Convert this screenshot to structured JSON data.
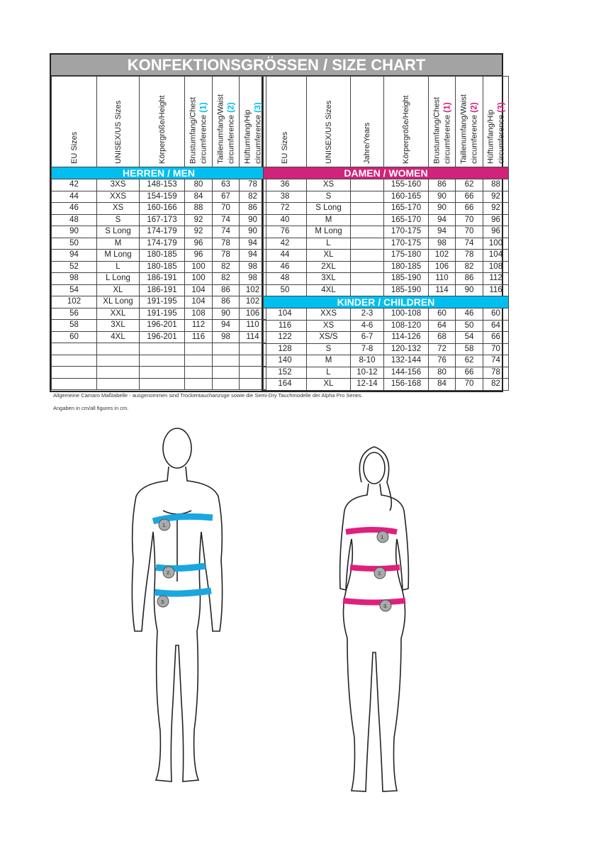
{
  "title": "KONFEKTIONSGRÖSSEN / SIZE CHART",
  "colors": {
    "men": "#00bff0",
    "women": "#d0237a",
    "children": "#00bff0",
    "title_bg": "#a3a3a3"
  },
  "men": {
    "section_label": "HERREN / MEN",
    "headers": [
      {
        "line1": "EU Sizes"
      },
      {
        "line1": "UNISEX/US Sizes"
      },
      {
        "line1": "Körpergröße/Height"
      },
      {
        "line1": "Brustumfang/Chest",
        "line2": "circumference",
        "num": "(1)"
      },
      {
        "line1": "Taillenumfang/Waist",
        "line2": "circumference",
        "num": "(2)"
      },
      {
        "line1": "Hüftumfang/Hip",
        "line2": "circumference",
        "num": "(3)"
      }
    ],
    "rows": [
      [
        "42",
        "3XS",
        "148-153",
        "80",
        "63",
        "78"
      ],
      [
        "44",
        "XXS",
        "154-159",
        "84",
        "67",
        "82"
      ],
      [
        "46",
        "XS",
        "160-166",
        "88",
        "70",
        "86"
      ],
      [
        "48",
        "S",
        "167-173",
        "92",
        "74",
        "90"
      ],
      [
        "90",
        "S Long",
        "174-179",
        "92",
        "74",
        "90"
      ],
      [
        "50",
        "M",
        "174-179",
        "96",
        "78",
        "94"
      ],
      [
        "94",
        "M Long",
        "180-185",
        "96",
        "78",
        "94"
      ],
      [
        "52",
        "L",
        "180-185",
        "100",
        "82",
        "98"
      ],
      [
        "98",
        "L Long",
        "186-191",
        "100",
        "82",
        "98"
      ],
      [
        "54",
        "XL",
        "186-191",
        "104",
        "86",
        "102"
      ],
      [
        "102",
        "XL Long",
        "191-195",
        "104",
        "86",
        "102"
      ],
      [
        "56",
        "XXL",
        "191-195",
        "108",
        "90",
        "106"
      ],
      [
        "58",
        "3XL",
        "196-201",
        "112",
        "94",
        "110"
      ],
      [
        "60",
        "4XL",
        "196-201",
        "116",
        "98",
        "114"
      ],
      [
        "",
        "",
        "",
        "",
        "",
        ""
      ],
      [
        "",
        "",
        "",
        "",
        "",
        ""
      ],
      [
        "",
        "",
        "",
        "",
        "",
        ""
      ],
      [
        "",
        "",
        "",
        "",
        "",
        ""
      ]
    ]
  },
  "women": {
    "section_label": "DAMEN / WOMEN",
    "headers": [
      {
        "line1": "EU Sizes"
      },
      {
        "line1": "UNISEX/US Sizes"
      },
      {
        "line1": "Jahre/Years"
      },
      {
        "line1": "Körpergröße/Height"
      },
      {
        "line1": "Brustumfang/Chest",
        "line2": "circumference",
        "num": "(1)"
      },
      {
        "line1": "Taillenumfang/Waist",
        "line2": "circumference",
        "num": "(2)"
      },
      {
        "line1": "Hüftumfang/Hip",
        "line2": "circumference",
        "num": "(3)"
      }
    ],
    "rows": [
      [
        "36",
        "XS",
        "",
        "155-160",
        "86",
        "62",
        "88"
      ],
      [
        "38",
        "S",
        "",
        "160-165",
        "90",
        "66",
        "92"
      ],
      [
        "72",
        "S Long",
        "",
        "165-170",
        "90",
        "66",
        "92"
      ],
      [
        "40",
        "M",
        "",
        "165-170",
        "94",
        "70",
        "96"
      ],
      [
        "76",
        "M Long",
        "",
        "170-175",
        "94",
        "70",
        "96"
      ],
      [
        "42",
        "L",
        "",
        "170-175",
        "98",
        "74",
        "100"
      ],
      [
        "44",
        "XL",
        "",
        "175-180",
        "102",
        "78",
        "104"
      ],
      [
        "46",
        "2XL",
        "",
        "180-185",
        "106",
        "82",
        "108"
      ],
      [
        "48",
        "3XL",
        "",
        "185-190",
        "110",
        "86",
        "112"
      ],
      [
        "50",
        "4XL",
        "",
        "185-190",
        "114",
        "90",
        "116"
      ]
    ]
  },
  "children": {
    "section_label": "KINDER / CHILDREN",
    "rows": [
      [
        "104",
        "XXS",
        "2-3",
        "100-108",
        "60",
        "46",
        "60"
      ],
      [
        "116",
        "XS",
        "4-6",
        "108-120",
        "64",
        "50",
        "64"
      ],
      [
        "122",
        "XS/S",
        "6-7",
        "114-126",
        "68",
        "54",
        "66"
      ],
      [
        "128",
        "S",
        "7-8",
        "120-132",
        "72",
        "58",
        "70"
      ],
      [
        "140",
        "M",
        "8-10",
        "132-144",
        "76",
        "62",
        "74"
      ],
      [
        "152",
        "L",
        "10-12",
        "144-156",
        "80",
        "66",
        "78"
      ],
      [
        "164",
        "XL",
        "12-14",
        "156-168",
        "84",
        "70",
        "82"
      ]
    ]
  },
  "notes": [
    "Allgemeine Camaro Maßtabelle - ausgenommen sind Trockentauchanzüge sowie die Semi-Dry Tauchmodelle der Alpha Pro Series.",
    "Angaben in cm/all figures in cm."
  ],
  "figure_markers": [
    "1.",
    "2.",
    "3."
  ]
}
